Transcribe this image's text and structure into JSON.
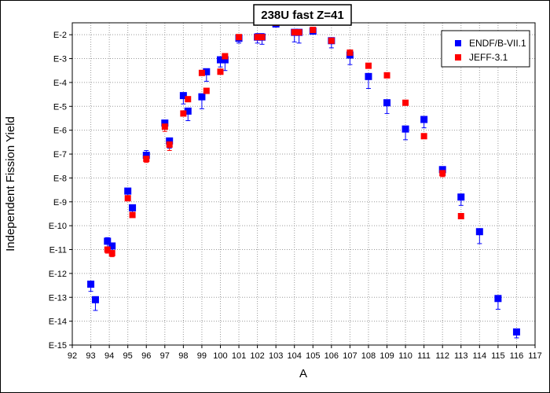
{
  "chart_data": {
    "type": "scatter",
    "title": "238U fast Z=41",
    "xlabel": "A",
    "ylabel": "Independent Fission Yield",
    "xlim": [
      92,
      117
    ],
    "ylim_log10": [
      -15,
      -1.5
    ],
    "yscale": "log",
    "x_ticks": [
      "92",
      "93",
      "94",
      "95",
      "96",
      "97",
      "98",
      "99",
      "100",
      "101",
      "102",
      "103",
      "104",
      "105",
      "106",
      "107",
      "108",
      "109",
      "110",
      "111",
      "112",
      "113",
      "114",
      "115",
      "116",
      "117"
    ],
    "y_ticks": [
      "E-2",
      "E-3",
      "E-4",
      "E-5",
      "E-6",
      "E-7",
      "E-8",
      "E-9",
      "E-10",
      "E-11",
      "E-12",
      "E-13",
      "E-14",
      "E-15"
    ],
    "grid": true,
    "legend_position": "top-right",
    "series": [
      {
        "name": "ENDF/B-VII.1",
        "color": "#0000ff",
        "marker": "square",
        "x": [
          93,
          93.25,
          93.9,
          94.15,
          95,
          95.25,
          96,
          97,
          97.25,
          98,
          98.25,
          99,
          99.25,
          100,
          100.25,
          101,
          102,
          102.25,
          103,
          104,
          104.25,
          105,
          106,
          107,
          108,
          109,
          110,
          111,
          112,
          113,
          114,
          115,
          116
        ],
        "y_log10": [
          -12.45,
          -13.1,
          -10.65,
          -10.85,
          -8.55,
          -9.25,
          -7.05,
          -5.7,
          -6.45,
          -4.55,
          -5.2,
          -4.6,
          -3.55,
          -3.05,
          -3.05,
          -2.15,
          -2.1,
          -2.1,
          -1.55,
          -1.9,
          -1.9,
          -1.85,
          -2.25,
          -2.85,
          -3.75,
          -4.85,
          -5.95,
          -5.55,
          -7.65,
          -8.8,
          -10.25,
          -13.05,
          -14.45
        ],
        "err_lo_log10": [
          0.3,
          0.45,
          0.25,
          0.3,
          0.2,
          0.25,
          0.25,
          0.25,
          0.3,
          0.35,
          0.4,
          0.5,
          0.4,
          0.3,
          0.45,
          0.2,
          0.25,
          0.3,
          0.1,
          0.4,
          0.45,
          0.1,
          0.3,
          0.4,
          0.5,
          0.45,
          0.45,
          0.35,
          0.25,
          0.35,
          0.5,
          0.45,
          0.25
        ],
        "err_hi_log10": [
          0.1,
          0.1,
          0.15,
          0.1,
          0.05,
          0.05,
          0.2,
          0.1,
          0.1,
          0.05,
          0.05,
          0.1,
          0.05,
          0.05,
          0.05,
          0.05,
          0.15,
          0.15,
          0.05,
          0.1,
          0.1,
          0.05,
          0.05,
          0.05,
          0.05,
          0.05,
          0.05,
          0.05,
          0.05,
          0.05,
          0.05,
          0.05,
          0.05
        ]
      },
      {
        "name": "JEFF-3.1",
        "color": "#ff0000",
        "marker": "square",
        "x": [
          93.9,
          94.15,
          95,
          95.25,
          96,
          97,
          97.25,
          98,
          98.25,
          99,
          99.25,
          100,
          100.25,
          101,
          102,
          102.25,
          103,
          104,
          104.25,
          105,
          106,
          107,
          108,
          109,
          110,
          111,
          112,
          113
        ],
        "y_log10": [
          -11.0,
          -11.15,
          -8.85,
          -9.55,
          -7.2,
          -5.85,
          -6.6,
          -5.3,
          -4.7,
          -3.6,
          -4.35,
          -3.55,
          -2.9,
          -2.1,
          -2.1,
          -2.1,
          -1.5,
          -1.9,
          -1.9,
          -1.8,
          -2.25,
          -2.75,
          -3.3,
          -3.7,
          -4.85,
          -6.25,
          -7.8,
          -9.6
        ],
        "err_lo_log10": [
          0.15,
          0.15,
          0.1,
          0.1,
          0.15,
          0.2,
          0.25,
          0.1,
          0.1,
          0.1,
          0.1,
          0.1,
          0.05,
          0.05,
          0.05,
          0.05,
          0.05,
          0.05,
          0.05,
          0.05,
          0.05,
          0.05,
          0.05,
          0.05,
          0.05,
          0.05,
          0.15,
          0.1
        ],
        "err_hi_log10": [
          0.05,
          0.05,
          0.05,
          0.05,
          0.05,
          0.05,
          0.05,
          0.05,
          0.05,
          0.05,
          0.05,
          0.05,
          0.05,
          0.05,
          0.05,
          0.05,
          0.05,
          0.05,
          0.05,
          0.05,
          0.05,
          0.05,
          0.05,
          0.05,
          0.05,
          0.05,
          0.05,
          0.05
        ]
      }
    ]
  }
}
